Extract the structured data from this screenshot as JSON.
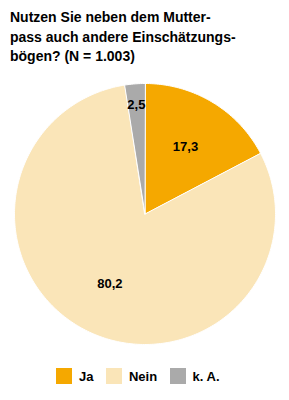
{
  "chart_data": {
    "type": "pie",
    "title": "Nutzen Sie neben dem Mutter-\npass auch andere Einschätzungs-\nbögen? (N = 1.003)",
    "categories": [
      "Ja",
      "Nein",
      "k. A."
    ],
    "values": [
      17.3,
      80.2,
      2.5
    ],
    "value_labels": [
      "17,3",
      "80,2",
      "2,5"
    ],
    "colors": [
      "#F5A800",
      "#FAE5B8",
      "#AAAAAA"
    ],
    "data_labels": true,
    "legend": "bottom"
  }
}
